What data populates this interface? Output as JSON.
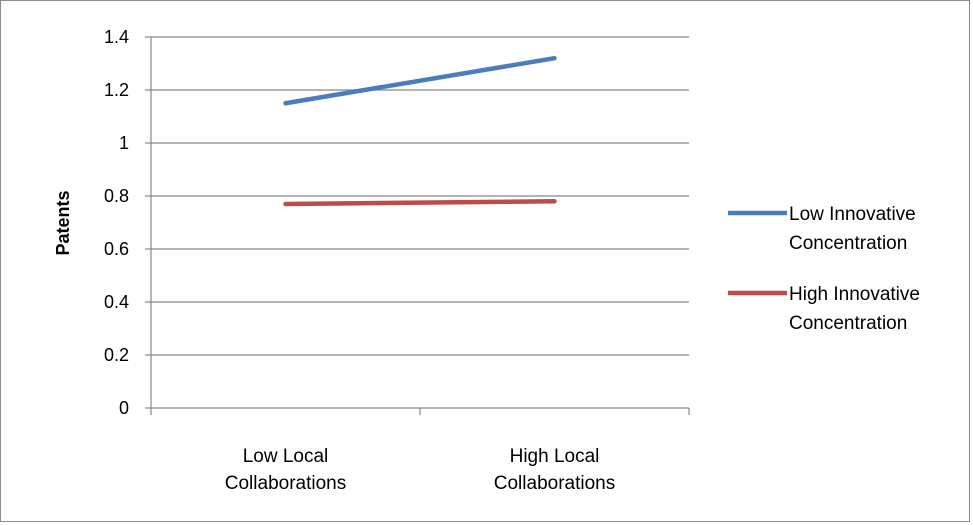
{
  "chart_data": {
    "type": "line",
    "title": "",
    "xlabel": "",
    "ylabel": "Patents",
    "ylim": [
      0,
      1.4
    ],
    "yticks": [
      "0",
      "0.2",
      "0.4",
      "0.6",
      "0.8",
      "1",
      "1.2",
      "1.4"
    ],
    "categories": [
      [
        "Low Local",
        "Collaborations"
      ],
      [
        "High Local",
        "Collaborations"
      ]
    ],
    "grid": true,
    "legend_position": "right",
    "series": [
      {
        "name_lines": [
          "Low Innovative",
          "Concentration"
        ],
        "values": [
          1.15,
          1.32
        ],
        "color": "#4a7ebb"
      },
      {
        "name_lines": [
          "High Innovative",
          "Concentration"
        ],
        "values": [
          0.77,
          0.78
        ],
        "color": "#be4b48"
      }
    ]
  }
}
